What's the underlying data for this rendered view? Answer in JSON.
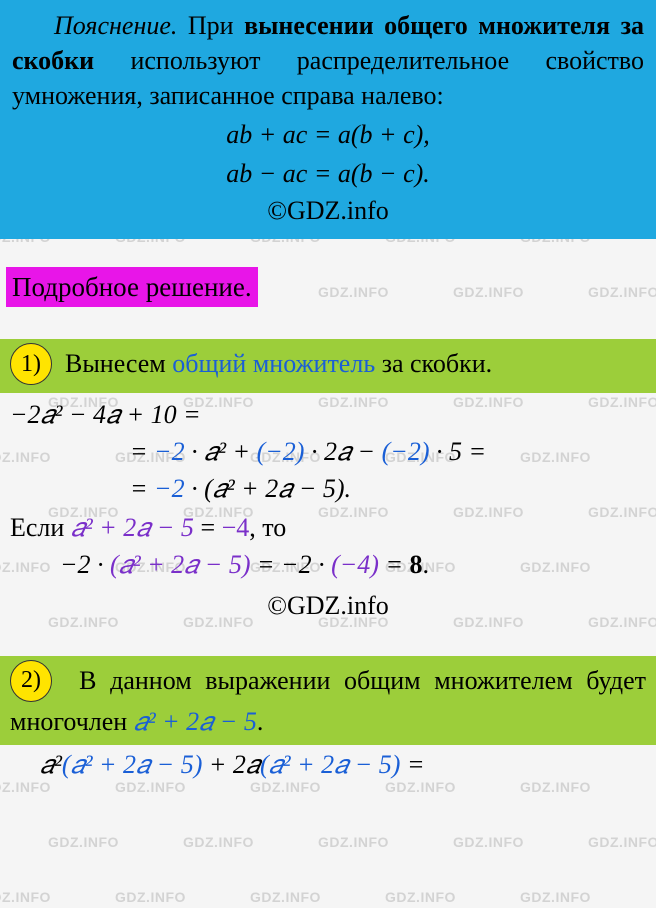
{
  "watermark_text": "GDZ.INFO",
  "watermark_color": "rgba(150,150,150,0.35)",
  "watermark_fontsize": 14,
  "colors": {
    "blue_box": "#1fa8e0",
    "magenta": "#e815e8",
    "green": "#9cce3a",
    "yellow": "#ffe400",
    "blue_text": "#1a5fd6",
    "purple_text": "#7a2fc9"
  },
  "explain": {
    "label": "Пояснение.",
    "bold_phrase": "вынесении общего множителя за скобки",
    "text_before": "При",
    "text_after": "используют распределительное свойство умножения, записанное справа налево:",
    "formula1": "ab + ac = a(b + c),",
    "formula2": "ab − ac = a(b − c).",
    "copyright": "©GDZ.info"
  },
  "section_title": "Подробное решение.",
  "part1": {
    "badge": "1)",
    "text_a": "Вынесем",
    "blue": "общий множитель",
    "text_b": "за скобки.",
    "line1": "−2𝑎² − 4𝑎 + 10 =",
    "line2_a": "=",
    "line2_b": "−2",
    "line2_c": "· 𝑎² +",
    "line2_d": "(−2)",
    "line2_e": "· 2𝑎 −",
    "line2_f": "(−2)",
    "line2_g": "· 5 =",
    "line3_a": "=",
    "line3_b": "−2",
    "line3_c": "· (𝑎² + 2𝑎 − 5).",
    "cond_a": "Если",
    "cond_purple": "𝑎² + 2𝑎 − 5",
    "cond_b": "=",
    "cond_c": "−4",
    "cond_d": ", то",
    "res_a": "−2 ·",
    "res_purple1": "(𝑎² + 2𝑎 − 5)",
    "res_b": "= −2 ·",
    "res_purple2": "(−4)",
    "res_c": "=",
    "res_bold": "8",
    "res_dot": ".",
    "copyright": "©GDZ.info"
  },
  "part2": {
    "badge": "2)",
    "text_a": "В данном выражении общим мно­жителем будет многочлен",
    "blue": "𝑎² + 2𝑎 − 5",
    "dot": ".",
    "line_a": "𝑎²",
    "line_b": "(𝑎² + 2𝑎 − 5)",
    "line_c": "+ 2𝑎",
    "line_d": "(𝑎² + 2𝑎 − 5)",
    "line_e": "="
  }
}
